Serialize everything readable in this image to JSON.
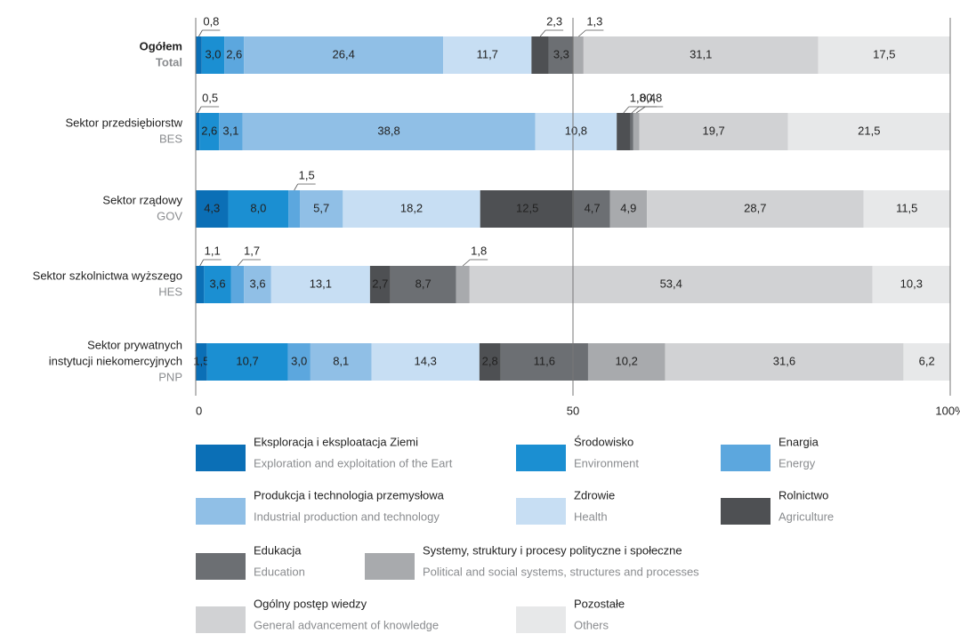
{
  "chart_data": {
    "type": "stacked-bar-horizontal",
    "categories": [
      [
        "Ogółem",
        "Total"
      ],
      [
        "Sektor przedsiębiorstw",
        "BES"
      ],
      [
        "Sektor rządowy",
        "GOV"
      ],
      [
        "Sektor szkolnictwa wyższego",
        "HES"
      ],
      [
        "Sektor prywatnych",
        "instytucji niekomercyjnych",
        "PNP"
      ]
    ],
    "series": [
      {
        "name": "Eksploracja i eksploatacja Ziemi",
        "name_en": "Exploration and exploitation of the Eart",
        "color": "#0b6fb6",
        "values": [
          0.8,
          0.5,
          4.3,
          1.1,
          1.5
        ],
        "value_labels": [
          "0,8",
          "0,5",
          "4,3",
          "1,1",
          "1,5"
        ]
      },
      {
        "name": "Środowisko",
        "name_en": "Environment",
        "color": "#1b8fd2",
        "values": [
          3.0,
          2.6,
          8.0,
          3.6,
          10.7
        ],
        "value_labels": [
          "3,0",
          "2,6",
          "8,0",
          "3,6",
          "10,7"
        ]
      },
      {
        "name": "Enargia",
        "name_en": "Energy",
        "color": "#5ca7de",
        "values": [
          2.6,
          3.1,
          1.5,
          1.7,
          3.0
        ],
        "value_labels": [
          "2,6",
          "3,1",
          "1,5",
          "1,7",
          "3,0"
        ]
      },
      {
        "name": "Produkcja i technologia przemysłowa",
        "name_en": "Industrial production and technology",
        "color": "#90bfe6",
        "values": [
          26.4,
          38.8,
          5.7,
          3.6,
          8.1
        ],
        "value_labels": [
          "26,4",
          "38,8",
          "5,7",
          "3,6",
          "8,1"
        ]
      },
      {
        "name": "Zdrowie",
        "name_en": "Health",
        "color": "#c7def3",
        "values": [
          11.7,
          10.8,
          18.2,
          13.1,
          14.3
        ],
        "value_labels": [
          "11,7",
          "10,8",
          "18,2",
          "13,1",
          "14,3"
        ]
      },
      {
        "name": "Rolnictwo",
        "name_en": "Agriculture",
        "color": "#4e5053",
        "values": [
          2.3,
          1.8,
          12.5,
          2.7,
          2.8
        ],
        "value_labels": [
          "2,3",
          "1,8",
          "12,5",
          "2,7",
          "2,8"
        ]
      },
      {
        "name": "Edukacja",
        "name_en": "Education",
        "color": "#6c6f73",
        "values": [
          3.3,
          0.4,
          4.7,
          8.7,
          11.6
        ],
        "value_labels": [
          "3,3",
          "0,4",
          "4,7",
          "8,7",
          "11,6"
        ]
      },
      {
        "name": "Systemy, struktury i procesy polityczne i społeczne",
        "name_en": "Political and social systems, structures and processes",
        "color": "#a8aaad",
        "values": [
          1.3,
          0.8,
          4.9,
          1.8,
          10.2
        ],
        "value_labels": [
          "1,3",
          "0,8",
          "4,9",
          "1,8",
          "10,2"
        ]
      },
      {
        "name": "Ogólny postęp wiedzy",
        "name_en": "General advancement of knowledge",
        "color": "#d1d2d4",
        "values": [
          31.1,
          19.7,
          28.7,
          53.4,
          31.6
        ],
        "value_labels": [
          "31,1",
          "19,7",
          "28,7",
          "53,4",
          "31,6"
        ]
      },
      {
        "name": "Pozostałe",
        "name_en": "Others",
        "color": "#e7e8e9",
        "values": [
          17.5,
          21.5,
          11.5,
          10.3,
          6.2
        ],
        "value_labels": [
          "17,5",
          "21,5",
          "11,5",
          "10,3",
          "6,2"
        ]
      }
    ],
    "xlim": [
      0,
      100
    ],
    "xticks": [
      0,
      50,
      {
        "value": 100,
        "label": "100%"
      }
    ]
  }
}
